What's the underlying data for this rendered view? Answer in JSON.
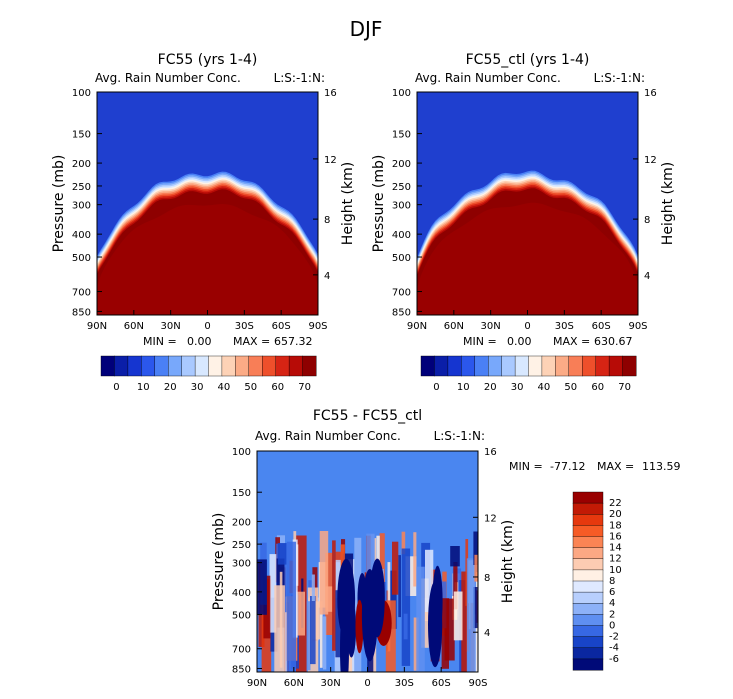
{
  "page_title": "DJF",
  "colors": {
    "blue_bg": "#1f3fcf",
    "dark_red": "#990000",
    "diff_bg": "#4a86f0"
  },
  "chart_data": [
    {
      "id": "p1",
      "type": "heatmap",
      "title": "FC55 (yrs 1-4)",
      "subtitle": "Avg. Rain Number Conc.",
      "units_label": "L:S:-1:N:",
      "ylabel": "Pressure (mb)",
      "y2label": "Height (km)",
      "x_ticks": [
        "90N",
        "60N",
        "30N",
        "0",
        "30S",
        "60S",
        "90S"
      ],
      "y_ticks": [
        "100",
        "150",
        "200",
        "250",
        "300",
        "400",
        "500",
        "700",
        "850"
      ],
      "y2_ticks": [
        "16",
        "12",
        "8",
        "4"
      ],
      "min_label": "MIN =",
      "min_value": "0.00",
      "max_label": "MAX =",
      "max_value": "657.32",
      "colorbar_labels": [
        "0",
        "10",
        "20",
        "30",
        "40",
        "50",
        "60",
        "70"
      ]
    },
    {
      "id": "p2",
      "type": "heatmap",
      "title": "FC55_ctl (yrs 1-4)",
      "subtitle": "Avg. Rain Number Conc.",
      "units_label": "L:S:-1:N:",
      "ylabel": "Pressure (mb)",
      "y2label": "Height (km)",
      "x_ticks": [
        "90N",
        "60N",
        "30N",
        "0",
        "30S",
        "60S",
        "90S"
      ],
      "y_ticks": [
        "100",
        "150",
        "200",
        "250",
        "300",
        "400",
        "500",
        "700",
        "850"
      ],
      "y2_ticks": [
        "16",
        "12",
        "8",
        "4"
      ],
      "min_label": "MIN =",
      "min_value": "0.00",
      "max_label": "MAX =",
      "max_value": "630.67",
      "colorbar_labels": [
        "0",
        "10",
        "20",
        "30",
        "40",
        "50",
        "60",
        "70"
      ]
    },
    {
      "id": "p3",
      "type": "heatmap",
      "title": "FC55 - FC55_ctl",
      "subtitle": "Avg. Rain Number Conc.",
      "units_label": "L:S:-1:N:",
      "ylabel": "Pressure (mb)",
      "y2label": "Height (km)",
      "x_ticks": [
        "90N",
        "60N",
        "30N",
        "0",
        "30S",
        "60S",
        "90S"
      ],
      "y_ticks": [
        "100",
        "150",
        "200",
        "250",
        "300",
        "400",
        "500",
        "700",
        "850"
      ],
      "y2_ticks": [
        "16",
        "12",
        "8",
        "4"
      ],
      "min_label": "MIN =",
      "min_value": "-77.12",
      "max_label": "MAX =",
      "max_value": "113.59",
      "colorbar_labels": [
        "22",
        "20",
        "18",
        "16",
        "14",
        "12",
        "10",
        "8",
        "6",
        "4",
        "2",
        "0",
        "-2",
        "-4",
        "-6"
      ]
    }
  ]
}
